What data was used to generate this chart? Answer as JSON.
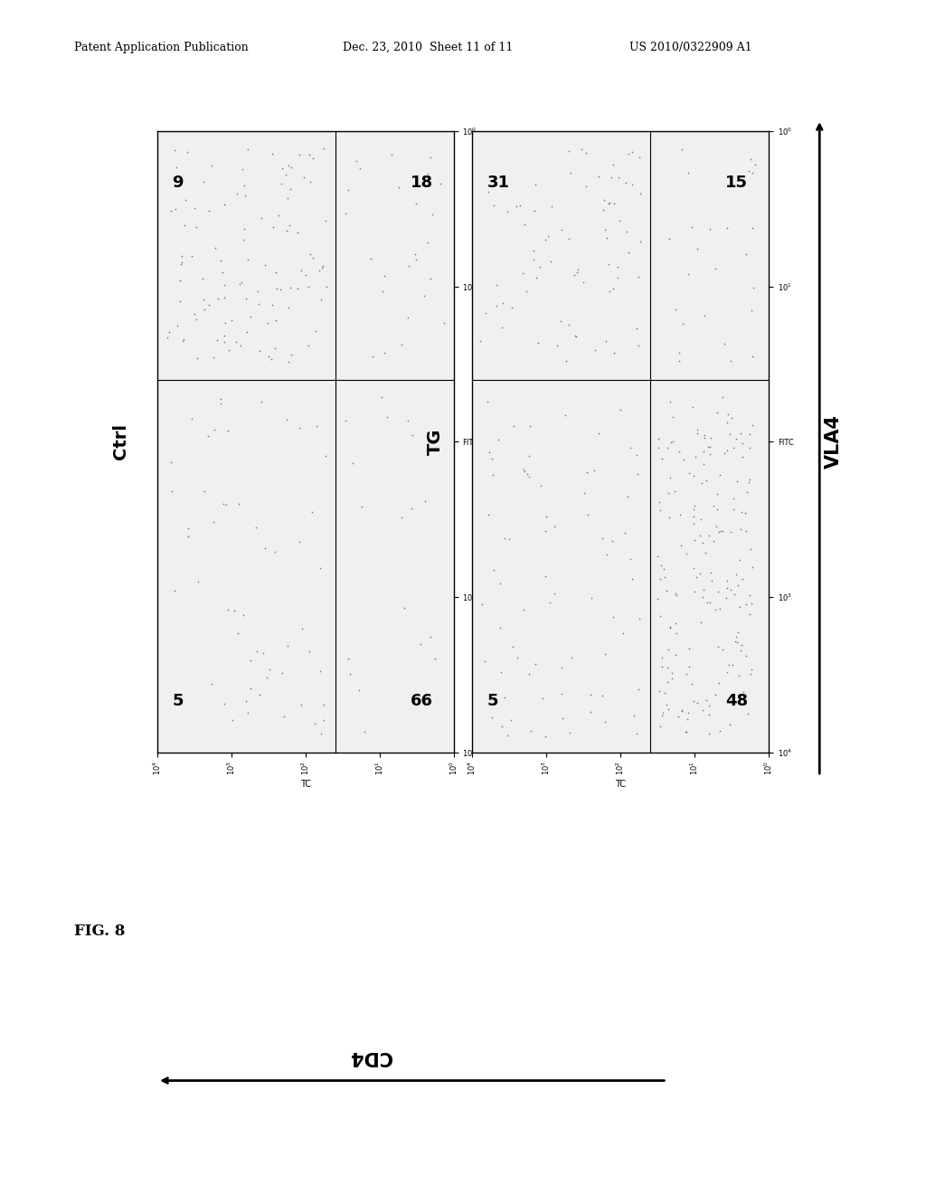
{
  "header_left": "Patent Application Publication",
  "header_mid": "Dec. 23, 2010  Sheet 11 of 11",
  "header_right": "US 2010/0322909 A1",
  "fig_label": "FIG. 8",
  "xaxis_label": "CD4",
  "yaxis_label": "VLA4",
  "plots": [
    {
      "title": "Ctrl",
      "quadrants": {
        "UL": "9",
        "UR": "18",
        "LL": "5",
        "LR": "66"
      },
      "dot_density_LL": 25,
      "dot_density_UL": 18,
      "dot_density_LR": 110,
      "dot_density_UR": 55
    },
    {
      "title": "TG",
      "quadrants": {
        "UL": "31",
        "UR": "15",
        "LL": "5",
        "LR": "48"
      },
      "dot_density_LL": 25,
      "dot_density_UL": 180,
      "dot_density_LR": 75,
      "dot_density_UR": 75
    }
  ],
  "bg_color": "#ffffff",
  "plot_bg": "#f0f0f0",
  "dot_color": "#555555",
  "dot_size": 1.5,
  "border_color": "#000000",
  "divider_x": 1.6,
  "divider_y": 1.6,
  "xmin": 0,
  "xmax": 4,
  "ymin": 0,
  "ymax": 4
}
